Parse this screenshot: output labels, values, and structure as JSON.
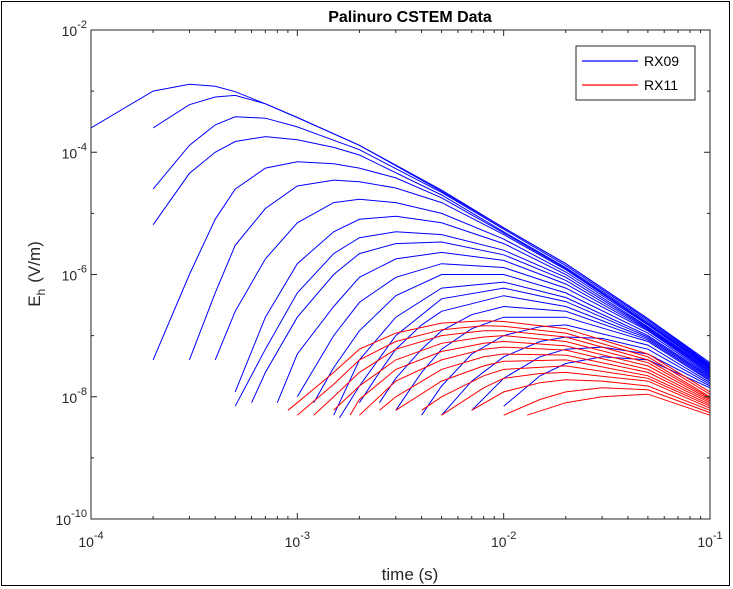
{
  "chart_data": {
    "type": "line",
    "title": "Palinuro CSTEM Data",
    "xlabel": "time (s)",
    "ylabel_main": "E",
    "ylabel_sub": "h",
    "ylabel_unit": "(V/m)",
    "xscale": "log",
    "yscale": "log",
    "xlim": [
      0.0001,
      0.1
    ],
    "ylim": [
      1e-10,
      0.01
    ],
    "x_ticks": [
      {
        "value": 0.0001,
        "base": "10",
        "exp": "-4"
      },
      {
        "value": 0.001,
        "base": "10",
        "exp": "-3"
      },
      {
        "value": 0.01,
        "base": "10",
        "exp": "-2"
      },
      {
        "value": 0.1,
        "base": "10",
        "exp": "-1"
      }
    ],
    "y_ticks": [
      {
        "value": 1e-10,
        "base": "10",
        "exp": "-10"
      },
      {
        "value": 1e-08,
        "base": "10",
        "exp": "-8"
      },
      {
        "value": 1e-06,
        "base": "10",
        "exp": "-6"
      },
      {
        "value": 0.0001,
        "base": "10",
        "exp": "-4"
      },
      {
        "value": 0.01,
        "base": "10",
        "exp": "-2"
      }
    ],
    "grid": false,
    "legend": {
      "position": "top-right",
      "entries": [
        {
          "label": "RX09",
          "color": "#0000ff"
        },
        {
          "label": "RX11",
          "color": "#ff0000"
        }
      ]
    },
    "series": [
      {
        "receiver": "RX09",
        "color": "#0000ff",
        "x": [
          0.0001,
          0.0002,
          0.0003,
          0.0004,
          0.0005,
          0.0007,
          0.001,
          0.002,
          0.005,
          0.01,
          0.02,
          0.05,
          0.1
        ],
        "y": [
          0.00025,
          0.001,
          0.0013,
          0.0012,
          0.00098,
          0.00062,
          0.00037,
          0.00013,
          2.3e-05,
          5.8e-06,
          1.5e-06,
          1.9e-07,
          3.6e-08
        ]
      },
      {
        "receiver": "RX09",
        "color": "#0000ff",
        "x": [
          0.0002,
          0.0003,
          0.0004,
          0.0005,
          0.0007,
          0.001,
          0.002,
          0.005,
          0.01,
          0.02,
          0.05,
          0.1
        ],
        "y": [
          0.00025,
          0.0006,
          0.0008,
          0.00085,
          0.00062,
          0.00037,
          0.00013,
          2.4e-05,
          5.8e-06,
          1.5e-06,
          1.9e-07,
          3.4e-08
        ]
      },
      {
        "receiver": "RX09",
        "color": "#0000ff",
        "x": [
          0.0002,
          0.0003,
          0.0004,
          0.0005,
          0.0007,
          0.001,
          0.002,
          0.005,
          0.01,
          0.02,
          0.05,
          0.1
        ],
        "y": [
          2.5e-05,
          0.00013,
          0.00028,
          0.00038,
          0.00036,
          0.00026,
          0.00011,
          2.2e-05,
          5.5e-06,
          1.4e-06,
          1.8e-07,
          3.3e-08
        ]
      },
      {
        "receiver": "RX09",
        "color": "#0000ff",
        "x": [
          0.0002,
          0.0003,
          0.0004,
          0.0005,
          0.0007,
          0.001,
          0.0015,
          0.002,
          0.005,
          0.01,
          0.02,
          0.05,
          0.1
        ],
        "y": [
          6.5e-06,
          4.5e-05,
          0.0001,
          0.00015,
          0.00018,
          0.00016,
          0.00012,
          9e-05,
          2e-05,
          5e-06,
          1.3e-06,
          1.7e-07,
          3.2e-08
        ]
      },
      {
        "receiver": "RX09",
        "color": "#0000ff",
        "x": [
          0.0002,
          0.0003,
          0.0004,
          0.0005,
          0.0007,
          0.001,
          0.0015,
          0.002,
          0.003,
          0.005,
          0.01,
          0.02,
          0.05,
          0.1
        ],
        "y": [
          4e-08,
          1e-06,
          8e-06,
          2.5e-05,
          5.5e-05,
          7e-05,
          6.5e-05,
          5.5e-05,
          3.8e-05,
          1.8e-05,
          4.8e-06,
          1.25e-06,
          1.6e-07,
          3.1e-08
        ]
      },
      {
        "receiver": "RX09",
        "color": "#0000ff",
        "x": [
          0.0003,
          0.0004,
          0.0005,
          0.0007,
          0.001,
          0.0015,
          0.002,
          0.003,
          0.005,
          0.01,
          0.02,
          0.05,
          0.1
        ],
        "y": [
          4e-08,
          5e-07,
          3e-06,
          1.2e-05,
          2.8e-05,
          3.5e-05,
          3.3e-05,
          2.6e-05,
          1.5e-05,
          4.5e-06,
          1.2e-06,
          1.55e-07,
          3e-08
        ]
      },
      {
        "receiver": "RX09",
        "color": "#0000ff",
        "x": [
          0.0004,
          0.0005,
          0.0007,
          0.001,
          0.0015,
          0.002,
          0.003,
          0.005,
          0.01,
          0.02,
          0.05,
          0.1
        ],
        "y": [
          4e-08,
          2.5e-07,
          1.8e-06,
          7e-06,
          1.5e-05,
          1.7e-05,
          1.5e-05,
          1e-05,
          3.8e-06,
          1.1e-06,
          1.5e-07,
          2.9e-08
        ]
      },
      {
        "receiver": "RX09",
        "color": "#0000ff",
        "x": [
          0.0005,
          0.0007,
          0.001,
          0.0015,
          0.002,
          0.003,
          0.005,
          0.01,
          0.02,
          0.05,
          0.1
        ],
        "y": [
          1.2e-08,
          2e-07,
          1.5e-06,
          5e-06,
          8e-06,
          9e-06,
          7e-06,
          3.2e-06,
          1e-06,
          1.4e-07,
          2.8e-08
        ]
      },
      {
        "receiver": "RX09",
        "color": "#0000ff",
        "x": [
          0.0005,
          0.0007,
          0.001,
          0.0015,
          0.002,
          0.003,
          0.005,
          0.01,
          0.02,
          0.05,
          0.1
        ],
        "y": [
          7e-09,
          6e-08,
          5e-07,
          2.2e-06,
          4e-06,
          5e-06,
          4.5e-06,
          2.5e-06,
          9e-07,
          1.35e-07,
          2.7e-08
        ]
      },
      {
        "receiver": "RX09",
        "color": "#0000ff",
        "x": [
          0.0006,
          0.0007,
          0.001,
          0.0015,
          0.002,
          0.003,
          0.005,
          0.01,
          0.02,
          0.05,
          0.1
        ],
        "y": [
          8e-09,
          2.5e-08,
          2e-07,
          1e-06,
          2.2e-06,
          3.2e-06,
          3.4e-06,
          2.1e-06,
          8e-07,
          1.3e-07,
          2.6e-08
        ]
      },
      {
        "receiver": "RX09",
        "color": "#0000ff",
        "x": [
          0.0008,
          0.001,
          0.0015,
          0.002,
          0.003,
          0.005,
          0.01,
          0.02,
          0.05,
          0.1
        ],
        "y": [
          8e-09,
          5e-08,
          3e-07,
          9e-07,
          1.8e-06,
          2.3e-06,
          1.7e-06,
          7e-07,
          1.25e-07,
          2.5e-08
        ]
      },
      {
        "receiver": "RX09",
        "color": "#0000ff",
        "x": [
          0.001,
          0.0015,
          0.002,
          0.003,
          0.005,
          0.01,
          0.02,
          0.05,
          0.1
        ],
        "y": [
          1e-08,
          1e-07,
          3.5e-07,
          9e-07,
          1.5e-06,
          1.3e-06,
          6e-07,
          1.2e-07,
          2.4e-08
        ]
      },
      {
        "receiver": "RX09",
        "color": "#0000ff",
        "x": [
          0.0012,
          0.0015,
          0.002,
          0.003,
          0.005,
          0.01,
          0.02,
          0.05,
          0.1
        ],
        "y": [
          8e-09,
          3e-08,
          1.2e-07,
          4.5e-07,
          1e-06,
          1e-06,
          5e-07,
          1.1e-07,
          2.3e-08
        ]
      },
      {
        "receiver": "RX09",
        "color": "#0000ff",
        "x": [
          0.0015,
          0.002,
          0.003,
          0.005,
          0.01,
          0.02,
          0.05,
          0.1
        ],
        "y": [
          5e-09,
          4e-08,
          2e-07,
          6e-07,
          7.5e-07,
          4.2e-07,
          1e-07,
          2.2e-08
        ]
      },
      {
        "receiver": "RX09",
        "color": "#0000ff",
        "x": [
          0.0016,
          0.002,
          0.003,
          0.005,
          0.01,
          0.02,
          0.05,
          0.1
        ],
        "y": [
          4.5e-09,
          1.5e-08,
          1e-07,
          4e-07,
          6e-07,
          3.6e-07,
          9.5e-08,
          2.1e-08
        ]
      },
      {
        "receiver": "RX09",
        "color": "#0000ff",
        "x": [
          0.002,
          0.0025,
          0.003,
          0.004,
          0.005,
          0.01,
          0.02,
          0.05,
          0.1
        ],
        "y": [
          8e-09,
          2.5e-08,
          6e-08,
          1.5e-07,
          2.5e-07,
          4.5e-07,
          3e-07,
          9e-08,
          2e-08
        ]
      },
      {
        "receiver": "RX09",
        "color": "#0000ff",
        "x": [
          0.0025,
          0.003,
          0.004,
          0.005,
          0.007,
          0.01,
          0.02,
          0.05,
          0.1
        ],
        "y": [
          8e-09,
          2e-08,
          6e-08,
          1.2e-07,
          2.2e-07,
          3e-07,
          2.5e-07,
          8.5e-08,
          1.9e-08
        ]
      },
      {
        "receiver": "RX09",
        "color": "#0000ff",
        "x": [
          0.003,
          0.004,
          0.005,
          0.007,
          0.01,
          0.02,
          0.05,
          0.1
        ],
        "y": [
          6e-09,
          2.5e-08,
          6e-08,
          1.3e-07,
          2e-07,
          2e-07,
          8e-08,
          1.8e-08
        ]
      },
      {
        "receiver": "RX09",
        "color": "#0000ff",
        "x": [
          0.004,
          0.005,
          0.007,
          0.01,
          0.015,
          0.02,
          0.05,
          0.1
        ],
        "y": [
          5e-09,
          1.5e-08,
          5e-08,
          1e-07,
          1.4e-07,
          1.5e-07,
          7e-08,
          1.7e-08
        ]
      },
      {
        "receiver": "RX09",
        "color": "#0000ff",
        "x": [
          0.005,
          0.007,
          0.01,
          0.015,
          0.02,
          0.03,
          0.05,
          0.1
        ],
        "y": [
          5e-09,
          1.8e-08,
          4.5e-08,
          8e-08,
          9.5e-08,
          9e-08,
          6e-08,
          1.6e-08
        ]
      },
      {
        "receiver": "RX09",
        "color": "#0000ff",
        "x": [
          0.007,
          0.01,
          0.015,
          0.02,
          0.03,
          0.05,
          0.1
        ],
        "y": [
          6e-09,
          2e-08,
          4.5e-08,
          6e-08,
          6.5e-08,
          5e-08,
          1.5e-08
        ]
      },
      {
        "receiver": "RX09",
        "color": "#0000ff",
        "x": [
          0.01,
          0.015,
          0.02,
          0.03,
          0.05,
          0.1
        ],
        "y": [
          7e-09,
          2.2e-08,
          3.5e-08,
          4.5e-08,
          4e-08,
          1.4e-08
        ]
      },
      {
        "receiver": "RX11",
        "color": "#ff0000",
        "x": [
          0.0009,
          0.001,
          0.0015,
          0.002,
          0.003,
          0.005,
          0.008,
          0.01,
          0.02,
          0.05,
          0.1
        ],
        "y": [
          6e-09,
          8e-09,
          2.5e-08,
          6e-08,
          1.1e-07,
          1.6e-07,
          1.75e-07,
          1.7e-07,
          1.3e-07,
          5e-08,
          1.2e-08
        ]
      },
      {
        "receiver": "RX11",
        "color": "#ff0000",
        "x": [
          0.001,
          0.0015,
          0.002,
          0.003,
          0.005,
          0.008,
          0.01,
          0.02,
          0.05,
          0.1
        ],
        "y": [
          5e-09,
          1.6e-08,
          4e-08,
          8e-08,
          1.25e-07,
          1.45e-07,
          1.42e-07,
          1.1e-07,
          4.5e-08,
          1.1e-08
        ]
      },
      {
        "receiver": "RX11",
        "color": "#ff0000",
        "x": [
          0.0012,
          0.0015,
          0.002,
          0.003,
          0.005,
          0.008,
          0.01,
          0.02,
          0.05,
          0.1
        ],
        "y": [
          5e-09,
          1e-08,
          2.5e-08,
          6e-08,
          1e-07,
          1.2e-07,
          1.2e-07,
          9.5e-08,
          4e-08,
          1e-08
        ]
      },
      {
        "receiver": "RX11",
        "color": "#ff0000",
        "x": [
          0.0015,
          0.002,
          0.003,
          0.005,
          0.008,
          0.01,
          0.02,
          0.05,
          0.1
        ],
        "y": [
          6e-09,
          1.5e-08,
          4e-08,
          7.5e-08,
          9.5e-08,
          1e-07,
          8e-08,
          3.6e-08,
          9.5e-09
        ]
      },
      {
        "receiver": "RX11",
        "color": "#ff0000",
        "x": [
          0.0018,
          0.002,
          0.003,
          0.005,
          0.008,
          0.01,
          0.02,
          0.05,
          0.1
        ],
        "y": [
          5e-09,
          9e-09,
          2.8e-08,
          5.5e-08,
          7.5e-08,
          8e-08,
          6.8e-08,
          3.2e-08,
          9e-09
        ]
      },
      {
        "receiver": "RX11",
        "color": "#ff0000",
        "x": [
          0.002,
          0.003,
          0.005,
          0.008,
          0.01,
          0.02,
          0.05,
          0.1
        ],
        "y": [
          5e-09,
          1.8e-08,
          4e-08,
          6e-08,
          6.5e-08,
          5.8e-08,
          2.8e-08,
          8.5e-09
        ]
      },
      {
        "receiver": "RX11",
        "color": "#ff0000",
        "x": [
          0.0025,
          0.003,
          0.005,
          0.008,
          0.01,
          0.02,
          0.05,
          0.1
        ],
        "y": [
          6e-09,
          1e-08,
          2.8e-08,
          4.5e-08,
          5e-08,
          4.8e-08,
          2.5e-08,
          8e-09
        ]
      },
      {
        "receiver": "RX11",
        "color": "#ff0000",
        "x": [
          0.003,
          0.005,
          0.008,
          0.01,
          0.02,
          0.05,
          0.1
        ],
        "y": [
          6e-09,
          1.8e-08,
          3.2e-08,
          3.8e-08,
          4e-08,
          2.2e-08,
          7.5e-09
        ]
      },
      {
        "receiver": "RX11",
        "color": "#ff0000",
        "x": [
          0.004,
          0.005,
          0.008,
          0.01,
          0.02,
          0.05,
          0.1
        ],
        "y": [
          6e-09,
          1e-08,
          2.2e-08,
          2.8e-08,
          3.2e-08,
          2e-08,
          7e-09
        ]
      },
      {
        "receiver": "RX11",
        "color": "#ff0000",
        "x": [
          0.005,
          0.008,
          0.01,
          0.015,
          0.02,
          0.05,
          0.1
        ],
        "y": [
          5e-09,
          1.4e-08,
          2e-08,
          2.4e-08,
          2.5e-08,
          1.8e-08,
          6.5e-09
        ]
      },
      {
        "receiver": "RX11",
        "color": "#ff0000",
        "x": [
          0.007,
          0.01,
          0.015,
          0.02,
          0.03,
          0.05,
          0.1
        ],
        "y": [
          6e-09,
          1.2e-08,
          1.7e-08,
          1.9e-08,
          1.8e-08,
          1.5e-08,
          6e-09
        ]
      },
      {
        "receiver": "RX11",
        "color": "#ff0000",
        "x": [
          0.01,
          0.015,
          0.02,
          0.03,
          0.05,
          0.1
        ],
        "y": [
          5e-09,
          9e-09,
          1.2e-08,
          1.4e-08,
          1.3e-08,
          5.5e-09
        ]
      },
      {
        "receiver": "RX11",
        "color": "#ff0000",
        "x": [
          0.013,
          0.02,
          0.03,
          0.05,
          0.1
        ],
        "y": [
          5e-09,
          8e-09,
          1e-08,
          1.1e-08,
          5e-09
        ]
      }
    ]
  }
}
